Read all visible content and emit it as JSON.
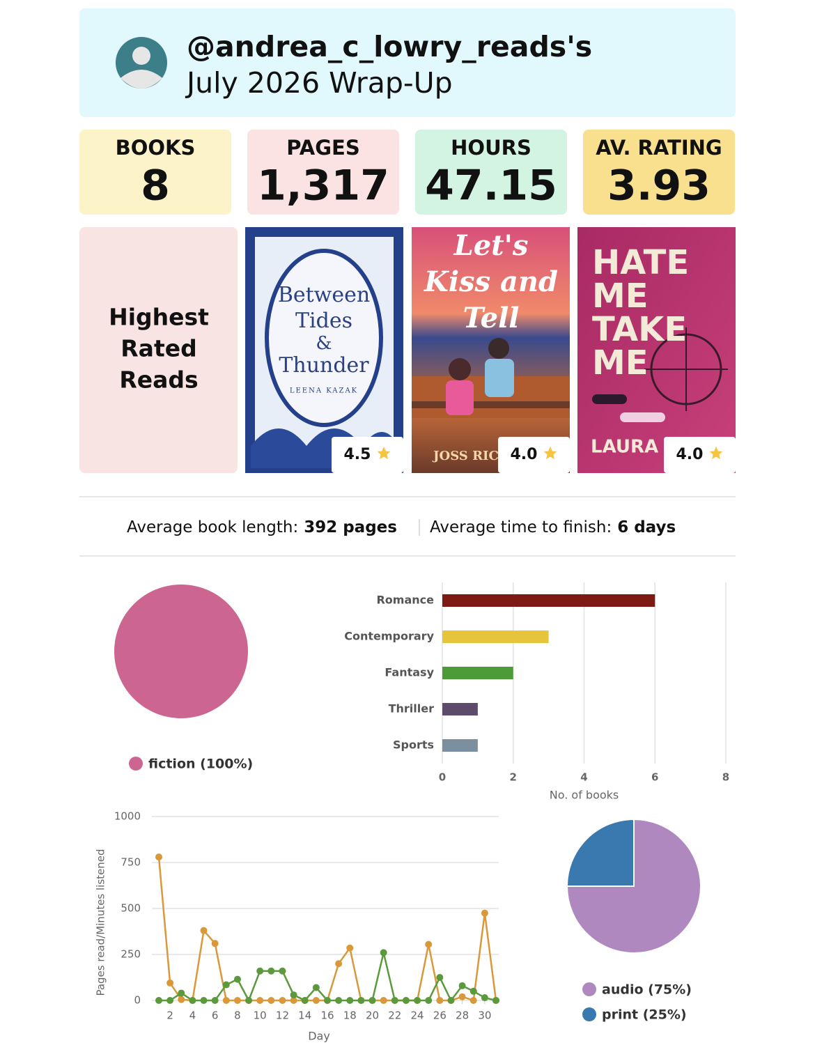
{
  "header": {
    "username": "@andrea_c_lowry_reads's",
    "subtitle": "July 2026 Wrap-Up"
  },
  "stats": [
    {
      "label": "BOOKS",
      "value": 8
    },
    {
      "label": "PAGES",
      "value": "1,317"
    },
    {
      "label": "HOURS",
      "value": 47.15
    },
    {
      "label": "AV. RATING",
      "value": 3.93
    }
  ],
  "highest_rated": {
    "heading": [
      "Highest",
      "Rated",
      "Reads"
    ],
    "books": [
      {
        "cover_title": [
          "Between",
          "Tides",
          "&",
          "Thunder"
        ],
        "cover_author": "LEENA KAZAK",
        "rating": 4.5
      },
      {
        "cover_title": [
          "Let's",
          "Kiss and",
          "Tell"
        ],
        "cover_author": "JOSS RIC",
        "rating": "4.0"
      },
      {
        "cover_title": [
          "HATE",
          "ME",
          "TAKE",
          "ME"
        ],
        "cover_author": "LAURA",
        "rating": "4.0"
      }
    ]
  },
  "averages": {
    "length_label": "Average book length:",
    "length_value": "392 pages",
    "time_label": "Average time to finish:",
    "time_value": "6 days"
  },
  "chart_data": [
    {
      "type": "pie",
      "categories": [
        "fiction (100%)"
      ],
      "values": [
        100
      ],
      "colors": [
        "#cc6690"
      ]
    },
    {
      "type": "bar",
      "orientation": "horizontal",
      "categories": [
        "Romance",
        "Contemporary",
        "Fantasy",
        "Thriller",
        "Sports"
      ],
      "values": [
        6,
        3,
        2,
        1,
        1
      ],
      "colors": [
        "#7e1a14",
        "#e6c43c",
        "#4c9a38",
        "#5e4a6a",
        "#7b8f9f"
      ],
      "xlabel": "No. of books",
      "xlim": [
        0,
        8
      ],
      "xticks": [
        0,
        2,
        4,
        6,
        8
      ],
      "grid": true
    },
    {
      "type": "line",
      "xlabel": "Day",
      "ylabel": "Pages read/Minutes listened",
      "x": [
        1,
        2,
        3,
        4,
        5,
        6,
        7,
        8,
        9,
        10,
        11,
        12,
        13,
        14,
        15,
        16,
        17,
        18,
        19,
        20,
        21,
        22,
        23,
        24,
        25,
        26,
        27,
        28,
        29,
        30,
        31
      ],
      "xlim": [
        1,
        31
      ],
      "xticks": [
        2,
        4,
        6,
        8,
        10,
        12,
        14,
        16,
        18,
        20,
        22,
        24,
        26,
        28,
        30
      ],
      "ylim": [
        0,
        1000
      ],
      "yticks": [
        0,
        250,
        500,
        750,
        1000
      ],
      "grid": true,
      "series": [
        {
          "color": "#d9983a",
          "values": [
            780,
            95,
            5,
            0,
            380,
            310,
            0,
            0,
            0,
            0,
            0,
            0,
            0,
            0,
            0,
            0,
            200,
            285,
            0,
            0,
            0,
            0,
            0,
            0,
            305,
            0,
            0,
            20,
            0,
            475,
            0
          ]
        },
        {
          "color": "#5a9a3c",
          "values": [
            0,
            0,
            40,
            0,
            0,
            0,
            85,
            115,
            0,
            160,
            160,
            160,
            30,
            0,
            70,
            0,
            0,
            0,
            0,
            0,
            260,
            0,
            0,
            0,
            0,
            125,
            0,
            80,
            50,
            15,
            0
          ]
        }
      ]
    },
    {
      "type": "pie",
      "categories": [
        "audio (75%)",
        "print (25%)"
      ],
      "values": [
        75,
        25
      ],
      "colors": [
        "#b088c0",
        "#3a78b0"
      ]
    }
  ]
}
